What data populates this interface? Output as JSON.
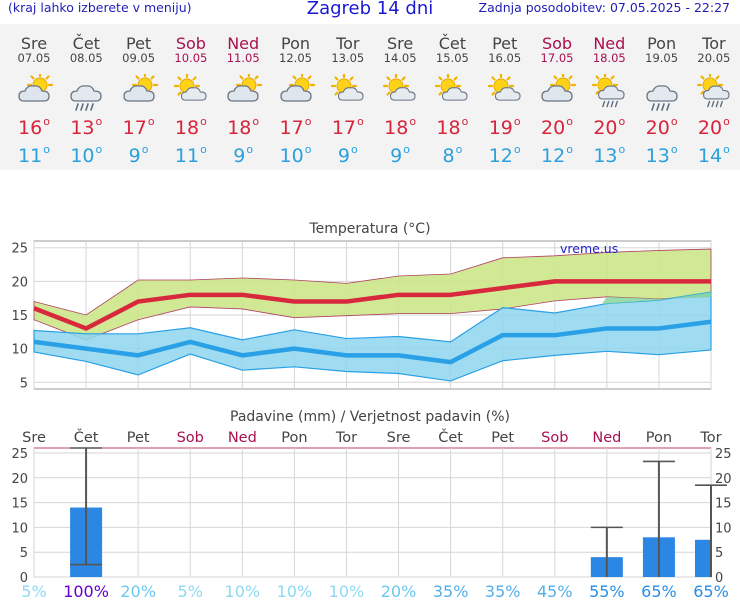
{
  "header": {
    "left": "(kraj lahko izberete v meniju)",
    "title": "Zagreb 14 dni",
    "right": "Zadnja posodobitev: 07.05.2025 - 22:27"
  },
  "days": [
    {
      "name": "Sre",
      "date": "07.05",
      "weekend": false,
      "icon": "partly-cloudy-icon",
      "tmax": "16",
      "tmin": "11"
    },
    {
      "name": "Čet",
      "date": "08.05",
      "weekend": false,
      "icon": "rain-cloud-icon",
      "tmax": "13",
      "tmin": "10"
    },
    {
      "name": "Pet",
      "date": "09.05",
      "weekend": false,
      "icon": "partly-cloudy-icon",
      "tmax": "17",
      "tmin": "9"
    },
    {
      "name": "Sob",
      "date": "10.05",
      "weekend": true,
      "icon": "sun-cloud-icon",
      "tmax": "18",
      "tmin": "11"
    },
    {
      "name": "Ned",
      "date": "11.05",
      "weekend": true,
      "icon": "partly-cloudy-icon",
      "tmax": "18",
      "tmin": "9"
    },
    {
      "name": "Pon",
      "date": "12.05",
      "weekend": false,
      "icon": "partly-cloudy-icon",
      "tmax": "17",
      "tmin": "10"
    },
    {
      "name": "Tor",
      "date": "13.05",
      "weekend": false,
      "icon": "sun-cloud-icon",
      "tmax": "17",
      "tmin": "9"
    },
    {
      "name": "Sre",
      "date": "14.05",
      "weekend": false,
      "icon": "sun-cloud-icon",
      "tmax": "18",
      "tmin": "9"
    },
    {
      "name": "Čet",
      "date": "15.05",
      "weekend": false,
      "icon": "sun-cloud-icon",
      "tmax": "18",
      "tmin": "8"
    },
    {
      "name": "Pet",
      "date": "16.05",
      "weekend": false,
      "icon": "sun-cloud-icon",
      "tmax": "19",
      "tmin": "12"
    },
    {
      "name": "Sob",
      "date": "17.05",
      "weekend": true,
      "icon": "partly-cloudy-icon",
      "tmax": "20",
      "tmin": "12"
    },
    {
      "name": "Ned",
      "date": "18.05",
      "weekend": true,
      "icon": "sun-rain-icon",
      "tmax": "20",
      "tmin": "13"
    },
    {
      "name": "Pon",
      "date": "19.05",
      "weekend": false,
      "icon": "rain-cloud-icon",
      "tmax": "20",
      "tmin": "13"
    },
    {
      "name": "Tor",
      "date": "20.05",
      "weekend": false,
      "icon": "sun-rain-icon",
      "tmax": "20",
      "tmin": "14"
    }
  ],
  "colors": {
    "max_line": "#d8283c",
    "min_line": "#2aa0e6",
    "max_band": "#cce68a",
    "min_band": "#8fd6ee",
    "precip_bar": "#2c86e4",
    "weekend_text": "#a8104e",
    "prob_high": "#6600cc"
  },
  "chart_data": [
    {
      "type": "line",
      "title": "Temperatura (°C)",
      "watermark": "vreme.us",
      "x": [
        "07.05",
        "08.05",
        "09.05",
        "10.05",
        "11.05",
        "12.05",
        "13.05",
        "14.05",
        "15.05",
        "16.05",
        "17.05",
        "18.05",
        "19.05",
        "20.05"
      ],
      "series": [
        {
          "values": [
            16,
            13,
            17,
            18,
            18,
            17,
            17,
            18,
            18,
            19,
            20,
            20,
            20,
            20
          ]
        },
        {
          "values": [
            11,
            10,
            9,
            11,
            9,
            10,
            9,
            9,
            8,
            12,
            12,
            13,
            13,
            14
          ]
        }
      ],
      "max_band": {
        "upper": [
          17,
          15,
          20.2,
          20.2,
          20.5,
          20.2,
          19.7,
          20.8,
          21.1,
          23.5,
          23.8,
          24.3,
          24.6,
          24.8
        ],
        "lower": [
          14.3,
          11.3,
          14.3,
          16.2,
          15.9,
          14.6,
          14.9,
          15.2,
          15.2,
          15.9,
          17.1,
          17.7,
          17.4,
          17.7
        ]
      },
      "min_band": {
        "upper": [
          12.7,
          12.2,
          12.2,
          13.1,
          11.3,
          12.8,
          11.5,
          11.8,
          11,
          16.1,
          15.3,
          16.7,
          17.2,
          18.4
        ],
        "lower": [
          9.5,
          8.1,
          6.1,
          9.2,
          6.8,
          7.3,
          6.6,
          6.3,
          5.2,
          8.2,
          9,
          9.6,
          9.1,
          9.8
        ]
      },
      "ylim": [
        4,
        26
      ],
      "yticks": [
        5,
        10,
        15,
        20,
        25
      ],
      "grid": true
    },
    {
      "type": "bar",
      "title": "Padavine (mm) / Verjetnost padavin (%)",
      "categories": [
        "Sre",
        "Čet",
        "Pet",
        "Sob",
        "Ned",
        "Pon",
        "Tor",
        "Sre",
        "Čet",
        "Pet",
        "Sob",
        "Ned",
        "Pon",
        "Tor"
      ],
      "weekend": [
        false,
        false,
        false,
        true,
        true,
        false,
        false,
        false,
        false,
        false,
        true,
        true,
        false,
        false
      ],
      "values": [
        0,
        14,
        0,
        0,
        0,
        0,
        0,
        0,
        0,
        0,
        0,
        4,
        8,
        7.5
      ],
      "error_bars": [
        null,
        [
          2.5,
          26
        ],
        null,
        null,
        null,
        null,
        null,
        null,
        null,
        null,
        null,
        [
          0,
          10
        ],
        [
          0,
          23.3
        ],
        [
          0,
          18.5
        ]
      ],
      "probability": [
        "5%",
        "100%",
        "20%",
        "5%",
        "10%",
        "10%",
        "10%",
        "20%",
        "35%",
        "35%",
        "45%",
        "55%",
        "65%",
        "65%"
      ],
      "probability_values": [
        5,
        100,
        20,
        5,
        10,
        10,
        10,
        20,
        35,
        35,
        45,
        55,
        65,
        65
      ],
      "ylim": [
        0,
        26
      ],
      "yticks": [
        0,
        5,
        10,
        15,
        20,
        25
      ],
      "grid": true
    }
  ]
}
